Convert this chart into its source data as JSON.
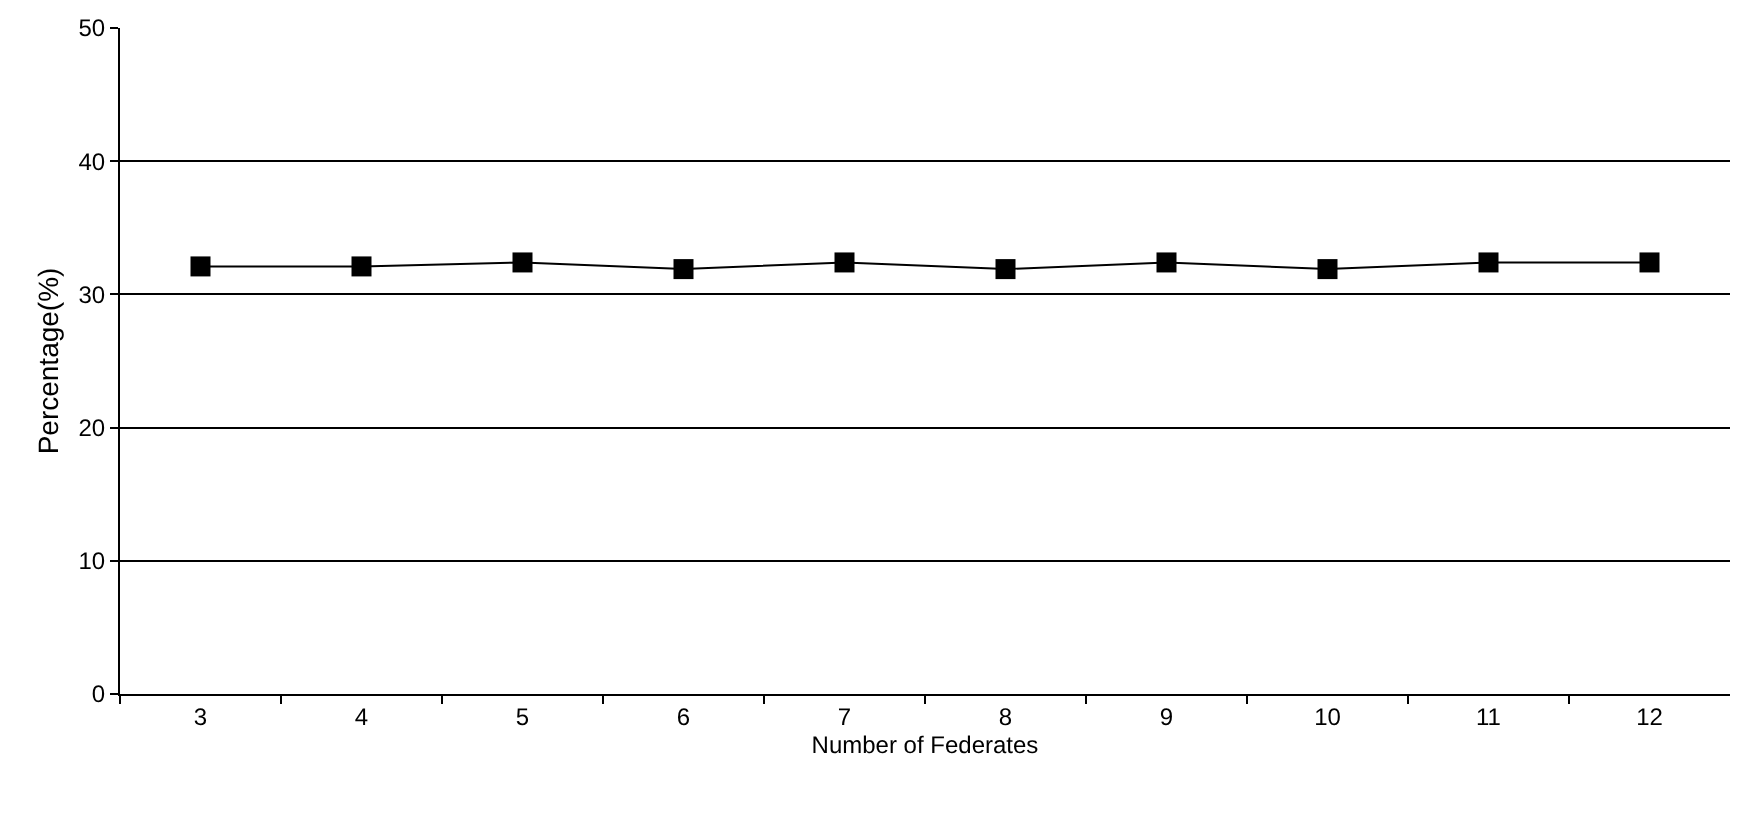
{
  "chart_data": {
    "type": "line",
    "xlabel": "Number of Federates",
    "ylabel": "Percentage(%)",
    "categories": [
      "3",
      "4",
      "5",
      "6",
      "7",
      "8",
      "9",
      "10",
      "11",
      "12"
    ],
    "series": [
      {
        "color": "#000000",
        "values": [
          32.1,
          32.1,
          32.4,
          31.9,
          32.4,
          31.9,
          32.4,
          31.9,
          32.4,
          32.4
        ]
      }
    ],
    "ylim": [
      0,
      50
    ],
    "yticks": [
      0,
      10,
      20,
      30,
      40,
      50
    ],
    "grid": "y",
    "legend": false,
    "marker": "square",
    "line_style": "solid"
  }
}
